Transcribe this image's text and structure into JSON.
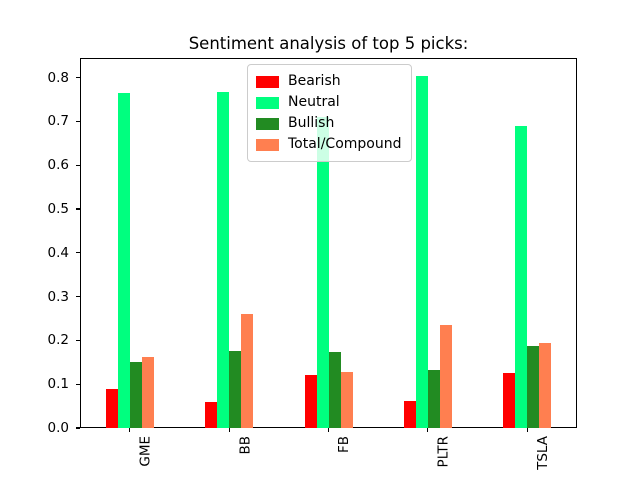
{
  "chart_data": {
    "type": "bar",
    "title": "Sentiment analysis of top 5 picks:",
    "categories": [
      "GME",
      "BB",
      "FB",
      "PLTR",
      "TSLA"
    ],
    "series": [
      {
        "name": "Bearish",
        "color": "#ff0000",
        "values": [
          0.088,
          0.059,
          0.121,
          0.062,
          0.125
        ]
      },
      {
        "name": "Neutral",
        "color": "#00ff7f",
        "values": [
          0.765,
          0.768,
          0.71,
          0.805,
          0.69
        ]
      },
      {
        "name": "Bullish",
        "color": "#228b22",
        "values": [
          0.15,
          0.175,
          0.174,
          0.133,
          0.188
        ]
      },
      {
        "name": "Total/Compound",
        "color": "#ff7f50",
        "values": [
          0.163,
          0.261,
          0.127,
          0.236,
          0.195
        ]
      }
    ],
    "xlabel": "",
    "ylabel": "",
    "ylim": [
      0,
      0.845
    ],
    "yticks": [
      0.0,
      0.1,
      0.2,
      0.3,
      0.4,
      0.5,
      0.6,
      0.7,
      0.8
    ],
    "ytick_format_decimals": 1,
    "xtick_rotation_degrees": 90,
    "legend_position": "upper center",
    "grid": false,
    "axis_color": "#000000",
    "legend_border_color": "#cccccc"
  }
}
